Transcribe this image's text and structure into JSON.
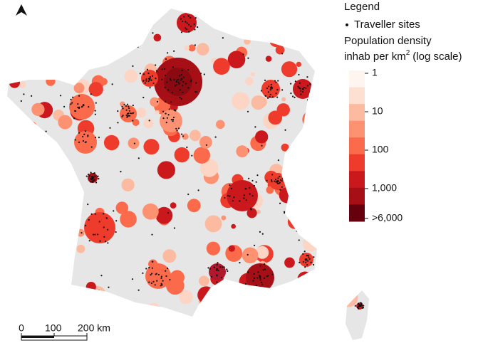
{
  "legend": {
    "title": "Legend",
    "traveller_sites": "Traveller sites",
    "density_title": "Population density",
    "density_unit": "inhab per km",
    "density_unit_exponent": "2",
    "density_unit_suffix": "(log scale)",
    "colorbar": {
      "log_scale": true,
      "lim": [
        1,
        6000
      ],
      "ticks": [
        1,
        10,
        100,
        {
          "value": 1000,
          "label": "1,000"
        },
        {
          "value": 6000,
          "label": ">6,000"
        }
      ],
      "colors": [
        "#fff5f0",
        "#fee0d2",
        "#fcbba1",
        "#fc9272",
        "#fb6a4a",
        "#ef3b2c",
        "#cb181d",
        "#a50f15",
        "#67000d"
      ]
    }
  },
  "scale_bar": {
    "lim": [
      0,
      200
    ],
    "ticks": [
      0,
      100,
      {
        "value": 200,
        "label": "200 km"
      }
    ]
  }
}
